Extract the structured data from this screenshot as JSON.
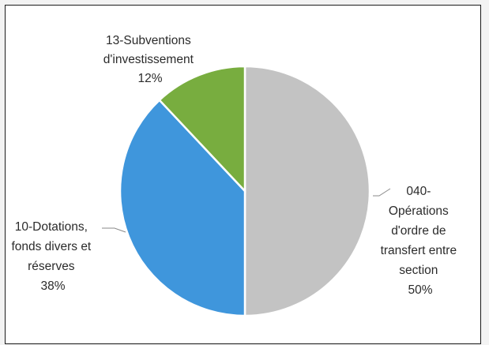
{
  "chart_data": {
    "type": "pie",
    "slices": [
      {
        "label_lines": [
          "040-",
          "Opérations",
          "d'ordre de",
          "transfert entre",
          "section"
        ],
        "percent_text": "50%",
        "value": 50,
        "color": "#c3c3c3"
      },
      {
        "label_lines": [
          "10-Dotations,",
          "fonds divers et",
          "réserves"
        ],
        "percent_text": "38%",
        "value": 38,
        "color": "#3f96dc"
      },
      {
        "label_lines": [
          "13-Subventions",
          "d'investissement"
        ],
        "percent_text": "12%",
        "value": 12,
        "color": "#78ad3f"
      }
    ]
  }
}
